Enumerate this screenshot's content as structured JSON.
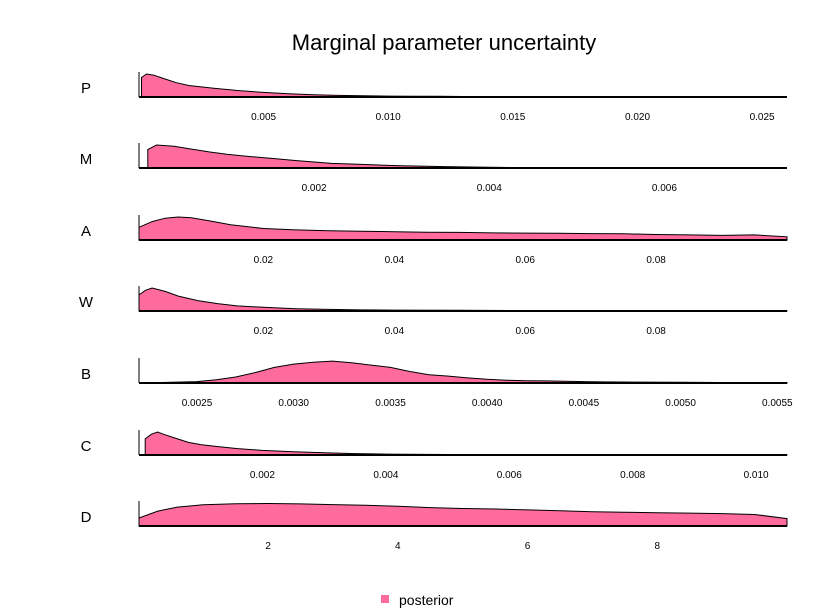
{
  "chart_data": {
    "type": "area",
    "title": "Marginal parameter uncertainty",
    "fill_color": "#ff6b9d",
    "line_color": "#000000",
    "legend": {
      "label": "posterior",
      "position": "bottom-center"
    },
    "panels": [
      {
        "name": "P",
        "xlim": [
          0.0,
          0.026
        ],
        "ticks": [
          0.005,
          0.01,
          0.015,
          0.02,
          0.025
        ],
        "tick_labels": [
          "0.005",
          "0.010",
          "0.015",
          "0.020",
          "0.025"
        ],
        "density": [
          [
            0.0001,
            0.85
          ],
          [
            0.0003,
            1.0
          ],
          [
            0.0006,
            0.95
          ],
          [
            0.001,
            0.8
          ],
          [
            0.0015,
            0.62
          ],
          [
            0.002,
            0.5
          ],
          [
            0.003,
            0.38
          ],
          [
            0.004,
            0.28
          ],
          [
            0.005,
            0.2
          ],
          [
            0.006,
            0.14
          ],
          [
            0.007,
            0.1
          ],
          [
            0.008,
            0.07
          ],
          [
            0.009,
            0.05
          ],
          [
            0.01,
            0.04
          ],
          [
            0.011,
            0.03
          ],
          [
            0.012,
            0.03
          ],
          [
            0.013,
            0.02
          ],
          [
            0.015,
            0.01
          ],
          [
            0.018,
            0.005
          ],
          [
            0.022,
            0.003
          ],
          [
            0.026,
            0.002
          ]
        ]
      },
      {
        "name": "M",
        "xlim": [
          0.0,
          0.0074
        ],
        "ticks": [
          0.002,
          0.004,
          0.006
        ],
        "tick_labels": [
          "0.002",
          "0.004",
          "0.006"
        ],
        "density": [
          [
            0.0001,
            0.8
          ],
          [
            0.0002,
            1.0
          ],
          [
            0.0004,
            0.95
          ],
          [
            0.0006,
            0.82
          ],
          [
            0.0008,
            0.7
          ],
          [
            0.001,
            0.6
          ],
          [
            0.0012,
            0.52
          ],
          [
            0.0015,
            0.42
          ],
          [
            0.0018,
            0.32
          ],
          [
            0.002,
            0.26
          ],
          [
            0.0022,
            0.2
          ],
          [
            0.0025,
            0.16
          ],
          [
            0.0028,
            0.12
          ],
          [
            0.003,
            0.1
          ],
          [
            0.0035,
            0.06
          ],
          [
            0.004,
            0.03
          ],
          [
            0.0045,
            0.015
          ],
          [
            0.005,
            0.008
          ],
          [
            0.006,
            0.004
          ],
          [
            0.0074,
            0.002
          ]
        ]
      },
      {
        "name": "A",
        "xlim": [
          0.001,
          0.1
        ],
        "ticks": [
          0.02,
          0.04,
          0.06,
          0.08
        ],
        "tick_labels": [
          "0.02",
          "0.04",
          "0.06",
          "0.08"
        ],
        "density": [
          [
            0.001,
            0.55
          ],
          [
            0.003,
            0.8
          ],
          [
            0.005,
            0.95
          ],
          [
            0.007,
            1.0
          ],
          [
            0.009,
            0.97
          ],
          [
            0.012,
            0.82
          ],
          [
            0.015,
            0.66
          ],
          [
            0.02,
            0.5
          ],
          [
            0.025,
            0.44
          ],
          [
            0.03,
            0.4
          ],
          [
            0.035,
            0.38
          ],
          [
            0.04,
            0.36
          ],
          [
            0.045,
            0.34
          ],
          [
            0.05,
            0.33
          ],
          [
            0.055,
            0.31
          ],
          [
            0.06,
            0.3
          ],
          [
            0.065,
            0.29
          ],
          [
            0.07,
            0.28
          ],
          [
            0.075,
            0.27
          ],
          [
            0.08,
            0.24
          ],
          [
            0.085,
            0.22
          ],
          [
            0.09,
            0.2
          ],
          [
            0.095,
            0.22
          ],
          [
            0.1,
            0.14
          ]
        ]
      },
      {
        "name": "W",
        "xlim": [
          0.001,
          0.1
        ],
        "ticks": [
          0.02,
          0.04,
          0.06,
          0.08
        ],
        "tick_labels": [
          "0.02",
          "0.04",
          "0.06",
          "0.08"
        ],
        "density": [
          [
            0.001,
            0.7
          ],
          [
            0.002,
            0.9
          ],
          [
            0.003,
            1.0
          ],
          [
            0.005,
            0.85
          ],
          [
            0.007,
            0.65
          ],
          [
            0.01,
            0.45
          ],
          [
            0.013,
            0.32
          ],
          [
            0.016,
            0.22
          ],
          [
            0.02,
            0.16
          ],
          [
            0.025,
            0.1
          ],
          [
            0.03,
            0.07
          ],
          [
            0.035,
            0.05
          ],
          [
            0.04,
            0.04
          ],
          [
            0.05,
            0.03
          ],
          [
            0.06,
            0.02
          ],
          [
            0.07,
            0.015
          ],
          [
            0.08,
            0.01
          ],
          [
            0.09,
            0.005
          ],
          [
            0.1,
            0.003
          ]
        ]
      },
      {
        "name": "B",
        "xlim": [
          0.0022,
          0.00555
        ],
        "ticks": [
          0.0025,
          0.003,
          0.0035,
          0.004,
          0.0045,
          0.005,
          0.0055
        ],
        "tick_labels": [
          "0.0025",
          "0.0030",
          "0.0035",
          "0.0040",
          "0.0045",
          "0.0050",
          "0.0055"
        ],
        "density": [
          [
            0.0022,
            0.0
          ],
          [
            0.0024,
            0.04
          ],
          [
            0.0025,
            0.06
          ],
          [
            0.0026,
            0.14
          ],
          [
            0.0027,
            0.26
          ],
          [
            0.0028,
            0.45
          ],
          [
            0.0029,
            0.68
          ],
          [
            0.003,
            0.82
          ],
          [
            0.0031,
            0.9
          ],
          [
            0.0032,
            0.95
          ],
          [
            0.0033,
            0.88
          ],
          [
            0.0034,
            0.78
          ],
          [
            0.0035,
            0.68
          ],
          [
            0.0036,
            0.5
          ],
          [
            0.0037,
            0.36
          ],
          [
            0.0038,
            0.3
          ],
          [
            0.0039,
            0.22
          ],
          [
            0.004,
            0.16
          ],
          [
            0.0041,
            0.12
          ],
          [
            0.0042,
            0.1
          ],
          [
            0.0043,
            0.09
          ],
          [
            0.0044,
            0.08
          ],
          [
            0.0045,
            0.06
          ],
          [
            0.0046,
            0.05
          ],
          [
            0.0048,
            0.04
          ],
          [
            0.005,
            0.03
          ],
          [
            0.0052,
            0.02
          ],
          [
            0.00555,
            0.02
          ]
        ]
      },
      {
        "name": "C",
        "xlim": [
          0.0,
          0.0105
        ],
        "ticks": [
          0.002,
          0.004,
          0.006,
          0.008,
          0.01
        ],
        "tick_labels": [
          "0.002",
          "0.004",
          "0.006",
          "0.008",
          "0.010"
        ],
        "density": [
          [
            0.0001,
            0.7
          ],
          [
            0.0002,
            0.9
          ],
          [
            0.0003,
            1.0
          ],
          [
            0.0004,
            0.9
          ],
          [
            0.0006,
            0.72
          ],
          [
            0.0008,
            0.55
          ],
          [
            0.001,
            0.45
          ],
          [
            0.0013,
            0.36
          ],
          [
            0.0016,
            0.28
          ],
          [
            0.002,
            0.2
          ],
          [
            0.0025,
            0.14
          ],
          [
            0.003,
            0.1
          ],
          [
            0.0035,
            0.06
          ],
          [
            0.004,
            0.04
          ],
          [
            0.005,
            0.02
          ],
          [
            0.006,
            0.01
          ],
          [
            0.008,
            0.005
          ],
          [
            0.0105,
            0.003
          ]
        ]
      },
      {
        "name": "D",
        "xlim": [
          0.01,
          10.0
        ],
        "ticks": [
          2,
          4,
          6,
          8
        ],
        "tick_labels": [
          "2",
          "4",
          "6",
          "8"
        ],
        "density": [
          [
            0.01,
            0.35
          ],
          [
            0.3,
            0.65
          ],
          [
            0.6,
            0.82
          ],
          [
            1.0,
            0.92
          ],
          [
            1.5,
            0.97
          ],
          [
            2.0,
            0.98
          ],
          [
            2.5,
            0.96
          ],
          [
            3.0,
            0.93
          ],
          [
            3.5,
            0.9
          ],
          [
            4.0,
            0.86
          ],
          [
            4.5,
            0.8
          ],
          [
            5.0,
            0.76
          ],
          [
            5.5,
            0.74
          ],
          [
            6.0,
            0.7
          ],
          [
            6.5,
            0.66
          ],
          [
            7.0,
            0.62
          ],
          [
            7.5,
            0.6
          ],
          [
            8.0,
            0.58
          ],
          [
            8.5,
            0.56
          ],
          [
            9.0,
            0.54
          ],
          [
            9.5,
            0.5
          ],
          [
            10.0,
            0.32
          ]
        ]
      }
    ]
  }
}
